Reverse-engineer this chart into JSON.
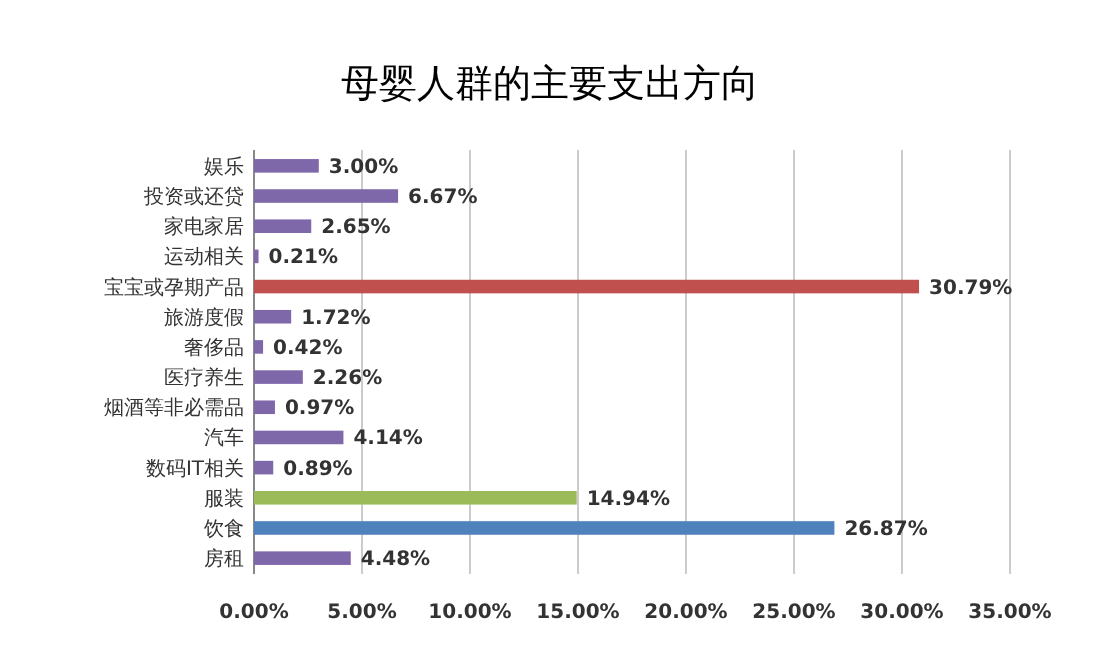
{
  "chart_data": {
    "type": "bar",
    "orientation": "horizontal",
    "title": "母婴人群的主要支出方向",
    "categories": [
      "娱乐",
      "投资或还贷",
      "家电家居",
      "运动相关",
      "宝宝或孕期产品",
      "旅游度假",
      "奢侈品",
      "医疗养生",
      "烟酒等非必需品",
      "汽车",
      "数码IT相关",
      "服装",
      "饮食",
      "房租"
    ],
    "values": [
      3.0,
      6.67,
      2.65,
      0.21,
      30.79,
      1.72,
      0.42,
      2.26,
      0.97,
      4.14,
      0.89,
      14.94,
      26.87,
      4.48
    ],
    "colors": [
      "#7f68aa",
      "#7f68aa",
      "#7f68aa",
      "#7f68aa",
      "#c0504d",
      "#7f68aa",
      "#7f68aa",
      "#7f68aa",
      "#7f68aa",
      "#7f68aa",
      "#7f68aa",
      "#9bbb59",
      "#4f81bd",
      "#7f68aa"
    ],
    "value_labels": [
      "3.00%",
      "6.67%",
      "2.65%",
      "0.21%",
      "30.79%",
      "1.72%",
      "0.42%",
      "2.26%",
      "0.97%",
      "4.14%",
      "0.89%",
      "14.94%",
      "26.87%",
      "4.48%"
    ],
    "xlim": [
      0,
      35
    ],
    "xticks": [
      {
        "value": 0,
        "label": "0.00%"
      },
      {
        "value": 5,
        "label": "5.00%"
      },
      {
        "value": 10,
        "label": "10.00%"
      },
      {
        "value": 15,
        "label": "15.00%"
      },
      {
        "value": 20,
        "label": "20.00%"
      },
      {
        "value": 25,
        "label": "25.00%"
      },
      {
        "value": 30,
        "label": "30.00%"
      },
      {
        "value": 35,
        "label": "35.00%"
      }
    ],
    "grid": "x"
  }
}
